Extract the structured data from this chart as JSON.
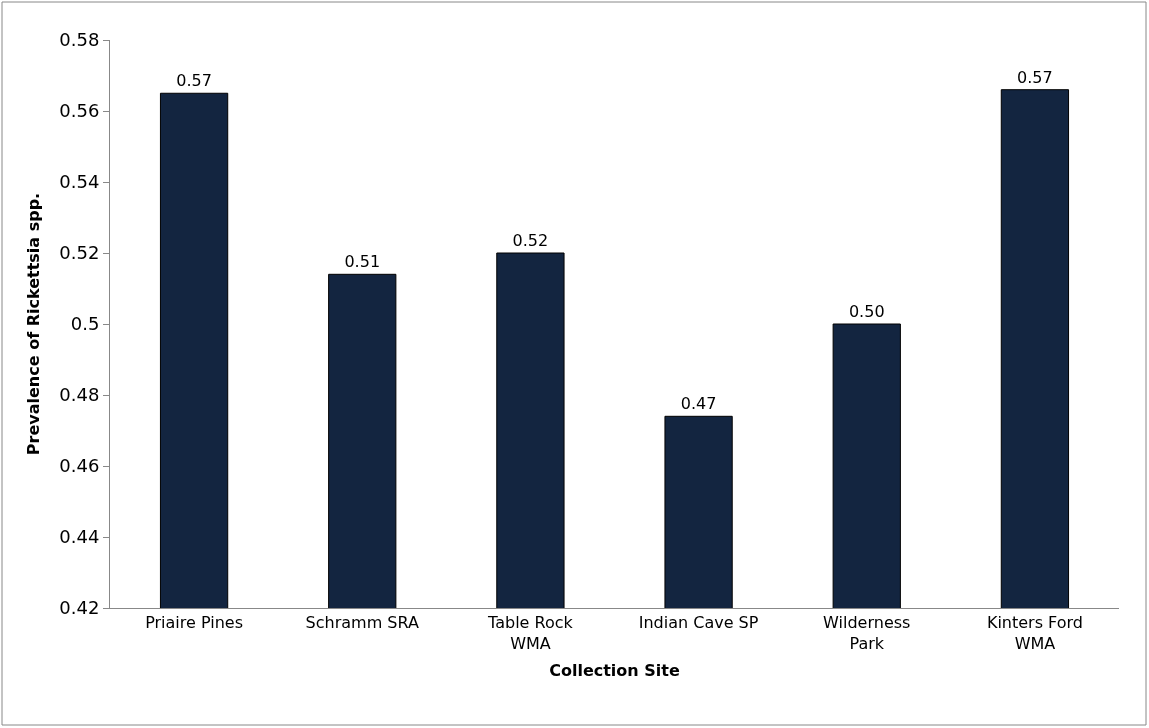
{
  "chart_data": {
    "type": "bar",
    "xlabel": "Collection Site",
    "ylabel": "Prevalence of Rickettsia spp.",
    "categories": [
      "Priaire Pines",
      "Schramm SRA",
      "Table Rock\nWMA",
      "Indian Cave SP",
      "Wilderness\nPark",
      "Kinters Ford\nWMA"
    ],
    "values": [
      0.565,
      0.514,
      0.52,
      0.474,
      0.5,
      0.566
    ],
    "value_labels": [
      "0.57",
      "0.51",
      "0.52",
      "0.47",
      "0.50",
      "0.57"
    ],
    "color": "#132540",
    "ylim": [
      0.42,
      0.58
    ],
    "yticks": [
      0.42,
      0.44,
      0.46,
      0.48,
      0.5,
      0.52,
      0.54,
      0.56,
      0.58
    ],
    "legend": false
  }
}
